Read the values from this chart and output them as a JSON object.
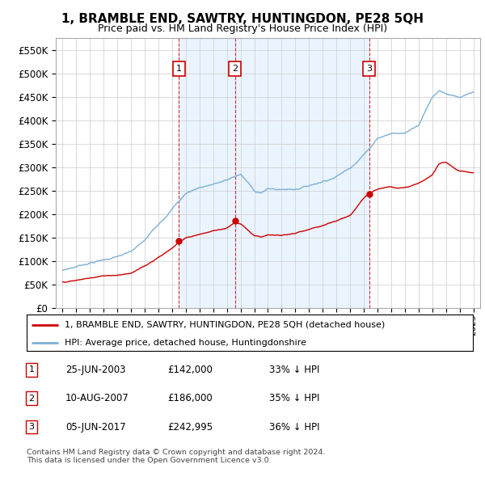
{
  "title": "1, BRAMBLE END, SAWTRY, HUNTINGDON, PE28 5QH",
  "subtitle": "Price paid vs. HM Land Registry's House Price Index (HPI)",
  "legend_line1": "1, BRAMBLE END, SAWTRY, HUNTINGDON, PE28 5QH (detached house)",
  "legend_line2": "HPI: Average price, detached house, Huntingdonshire",
  "footer1": "Contains HM Land Registry data © Crown copyright and database right 2024.",
  "footer2": "This data is licensed under the Open Government Licence v3.0.",
  "purchases": [
    {
      "num": 1,
      "date": "25-JUN-2003",
      "price": "£142,000",
      "hpi": "33% ↓ HPI",
      "year": 2003.5
    },
    {
      "num": 2,
      "date": "10-AUG-2007",
      "price": "£186,000",
      "hpi": "35% ↓ HPI",
      "year": 2007.6
    },
    {
      "num": 3,
      "date": "05-JUN-2017",
      "price": "£242,995",
      "hpi": "36% ↓ HPI",
      "year": 2017.4
    }
  ],
  "purchase_prices": [
    142000,
    186000,
    242995
  ],
  "ylim": [
    0,
    575000
  ],
  "yticks": [
    0,
    50000,
    100000,
    150000,
    200000,
    250000,
    300000,
    350000,
    400000,
    450000,
    500000,
    550000
  ],
  "xlim": [
    1994.5,
    2025.5
  ],
  "background_color": "#ffffff",
  "grid_color": "#cccccc",
  "red_color": "#cc0000",
  "blue_color": "#7bb0d8",
  "shade_color": "#ddeeff"
}
